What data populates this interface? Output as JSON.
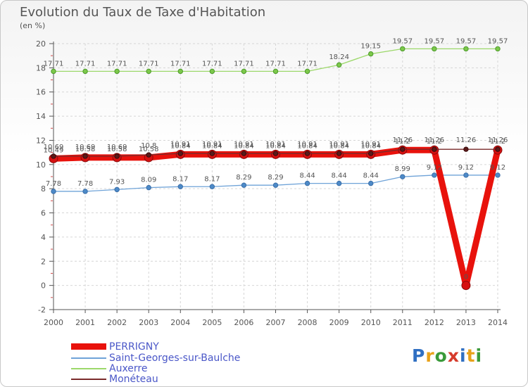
{
  "title": "Evolution du Taux de Taxe d'Habitation",
  "subtitle": "(en %)",
  "logo": {
    "letters": [
      {
        "ch": "P",
        "color": "#2f6fc2"
      },
      {
        "ch": "r",
        "color": "#e8a21a"
      },
      {
        "ch": "o",
        "color": "#3a9a3a"
      },
      {
        "ch": "x",
        "color": "#d63b2b"
      },
      {
        "ch": "i",
        "color": "#2f6fc2"
      },
      {
        "ch": "t",
        "color": "#e8a21a"
      },
      {
        "ch": "i",
        "color": "#3a9a3a"
      }
    ]
  },
  "chart_data": {
    "type": "line",
    "title": "Evolution du Taux de Taxe d'Habitation",
    "ylabel": "(en %)",
    "xlabel": "",
    "ylim": [
      -2,
      20
    ],
    "yticks": [
      -2,
      0,
      2,
      4,
      6,
      8,
      10,
      12,
      14,
      16,
      18,
      20
    ],
    "grid": true,
    "legend_position": "bottom-left",
    "x": [
      "2000",
      "2001",
      "2002",
      "2003",
      "2004",
      "2005",
      "2006",
      "2007",
      "2008",
      "2009",
      "2010",
      "2011",
      "2012",
      "2013",
      "2014"
    ],
    "series": [
      {
        "name": "PERRIGNY",
        "color": "#e8120c",
        "values": [
          10.49,
          10.58,
          10.58,
          10.58,
          10.84,
          10.84,
          10.84,
          10.84,
          10.84,
          10.84,
          10.84,
          11.2,
          11.2,
          0,
          11.2
        ],
        "labels": [
          "10.49",
          "10.58",
          "10.58",
          "10.58",
          "10.84",
          "10.84",
          "10.84",
          "10.84",
          "10.84",
          "10.84",
          "10.84",
          "11.2",
          "11.2",
          "0",
          "11.2"
        ]
      },
      {
        "name": "Saint-Georges-sur-Baulche",
        "color": "#6fa3d8",
        "values": [
          7.78,
          7.78,
          7.93,
          8.09,
          8.17,
          8.17,
          8.29,
          8.29,
          8.44,
          8.44,
          8.44,
          8.99,
          9.12,
          9.12,
          9.12
        ],
        "labels": [
          "7.78",
          "7.78",
          "7.93",
          "8.09",
          "8.17",
          "8.17",
          "8.29",
          "8.29",
          "8.44",
          "8.44",
          "8.44",
          "8.99",
          "9.12",
          "9.12",
          "9.12"
        ]
      },
      {
        "name": "Auxerre",
        "color": "#9cd86a",
        "values": [
          17.71,
          17.71,
          17.71,
          17.71,
          17.71,
          17.71,
          17.71,
          17.71,
          17.71,
          18.24,
          19.15,
          19.57,
          19.57,
          19.57,
          19.57
        ],
        "labels": [
          "17.71",
          "17.71",
          "17.71",
          "17.71",
          "17.71",
          "17.71",
          "17.71",
          "17.71",
          "17.71",
          "18.24",
          "19.15",
          "19.57",
          "19.57",
          "19.57",
          "19.57"
        ]
      },
      {
        "name": "Monéteau",
        "color": "#7a2a2a",
        "values": [
          10.69,
          10.69,
          10.69,
          10.8,
          10.91,
          10.91,
          10.91,
          10.91,
          10.91,
          10.91,
          10.91,
          11.26,
          11.26,
          11.26,
          11.26
        ],
        "labels": [
          "10.69",
          "10.69",
          "10.69",
          "10.8",
          "10.91",
          "10.91",
          "10.91",
          "10.91",
          "10.91",
          "10.91",
          "10.91",
          "11.26",
          "11.26",
          "11.26",
          "11.26"
        ]
      }
    ]
  }
}
